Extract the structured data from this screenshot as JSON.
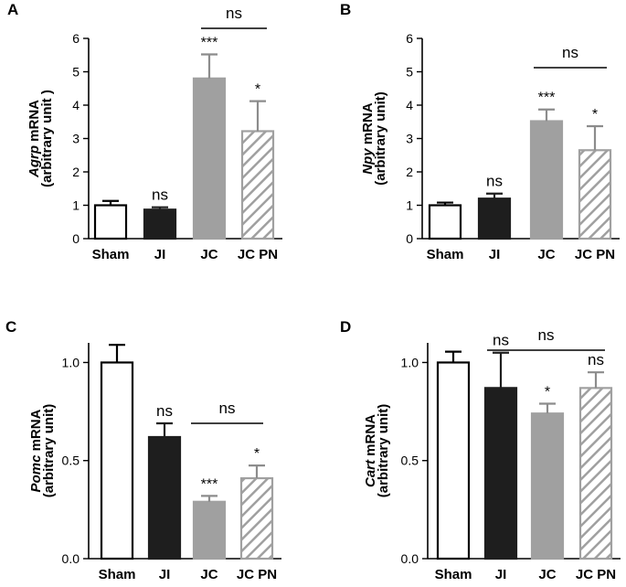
{
  "chart_data": [
    {
      "panel": "A",
      "type": "bar",
      "gene": "Agrp",
      "ylabel_suffix": " mRNA",
      "ylabel_line2": "(arbitrary unit )",
      "categories": [
        "Sham",
        "JI",
        "JC",
        "JC PN"
      ],
      "values": [
        1.0,
        0.87,
        4.8,
        3.22
      ],
      "errors": [
        0.13,
        0.07,
        0.72,
        0.9
      ],
      "significance": [
        "",
        "ns",
        "***",
        "*"
      ],
      "ylim": [
        0,
        6
      ],
      "yticks": [
        "0",
        "1",
        "2",
        "3",
        "4",
        "5",
        "6"
      ],
      "comparison": {
        "label": "ns",
        "from": "JC",
        "to": "JC PN"
      }
    },
    {
      "panel": "B",
      "type": "bar",
      "gene": "Npy",
      "ylabel_suffix": " mRNA",
      "ylabel_line2": "(arbitrary unit)",
      "categories": [
        "Sham",
        "JI",
        "JC",
        "JC PN"
      ],
      "values": [
        1.0,
        1.2,
        3.52,
        2.65
      ],
      "errors": [
        0.08,
        0.15,
        0.35,
        0.72
      ],
      "significance": [
        "",
        "ns",
        "***",
        "*"
      ],
      "ylim": [
        0,
        6
      ],
      "yticks": [
        "0",
        "1",
        "2",
        "3",
        "4",
        "5",
        "6"
      ],
      "comparison": {
        "label": "ns",
        "from": "JC",
        "to": "JC PN"
      }
    },
    {
      "panel": "C",
      "type": "bar",
      "gene": "Pomc",
      "ylabel_suffix": " mRNA",
      "ylabel_line2": "(arbitrary unit)",
      "categories": [
        "Sham",
        "JI",
        "JC",
        "JC PN"
      ],
      "values": [
        1.0,
        0.62,
        0.29,
        0.41
      ],
      "errors": [
        0.09,
        0.07,
        0.03,
        0.065
      ],
      "significance": [
        "",
        "ns",
        "***",
        "*"
      ],
      "ylim": [
        0,
        1.1
      ],
      "yticks": [
        "0.0",
        "0.5",
        "1.0"
      ],
      "comparison": {
        "label": "ns",
        "from": "JC",
        "to": "JC PN"
      }
    },
    {
      "panel": "D",
      "type": "bar",
      "gene": "Cart",
      "ylabel_suffix": " mRNA",
      "ylabel_line2": "(arbitrary unit)",
      "categories": [
        "Sham",
        "JI",
        "JC",
        "JC PN"
      ],
      "values": [
        1.0,
        0.87,
        0.74,
        0.87
      ],
      "errors": [
        0.055,
        0.18,
        0.05,
        0.08
      ],
      "significance": [
        "",
        "ns",
        "*",
        "ns"
      ],
      "ylim": [
        0,
        1.1
      ],
      "yticks": [
        "0.0",
        "0.5",
        "1.0"
      ],
      "comparison": {
        "label": "ns",
        "from": "JI",
        "to": "JC"
      }
    }
  ],
  "style": {
    "fills": [
      "#ffffff",
      "#1e1e1e",
      "#a0a0a0",
      "hatch"
    ],
    "strokes": [
      "#000000",
      "#1e1e1e",
      "#a0a0a0",
      "#a0a0a0"
    ],
    "error_colors": [
      "#000000",
      "#1e1e1e",
      "#8c8c8c",
      "#8c8c8c"
    ],
    "hatch_color": "#a0a0a0"
  }
}
